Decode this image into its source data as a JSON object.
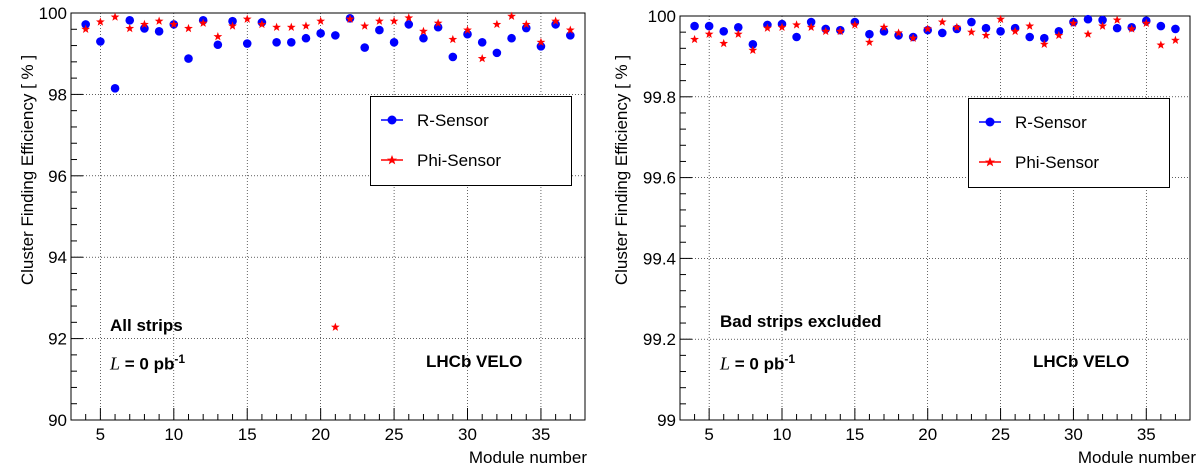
{
  "chart_data": [
    {
      "type": "scatter",
      "xlabel": "Module number",
      "ylabel": "Cluster Finding Efficiency  [ % ]",
      "xlim": [
        3,
        38
      ],
      "ylim": [
        90,
        100
      ],
      "xticks": [
        5,
        10,
        15,
        20,
        25,
        30,
        35
      ],
      "yticks": [
        90,
        92,
        94,
        96,
        98,
        100
      ],
      "grid": true,
      "legend_position": "upper-right",
      "annotations": [
        "All strips",
        "L = 0 pb-1",
        "LHCb VELO"
      ],
      "series": [
        {
          "name": "R-Sensor",
          "marker": "circle",
          "color": "#0000ff",
          "x": [
            4,
            5,
            6,
            7,
            8,
            9,
            10,
            11,
            12,
            13,
            14,
            15,
            16,
            17,
            18,
            19,
            20,
            21,
            22,
            23,
            24,
            25,
            26,
            27,
            28,
            29,
            30,
            31,
            32,
            33,
            34,
            35,
            36,
            37
          ],
          "y": [
            99.72,
            99.3,
            98.15,
            99.82,
            99.62,
            99.55,
            99.72,
            98.88,
            99.82,
            99.22,
            99.8,
            99.25,
            99.77,
            99.28,
            99.28,
            99.38,
            99.5,
            99.45,
            99.87,
            99.15,
            99.58,
            99.28,
            99.72,
            99.38,
            99.65,
            98.92,
            99.48,
            99.28,
            99.02,
            99.38,
            99.63,
            99.18,
            99.72,
            99.45
          ]
        },
        {
          "name": "Phi-Sensor",
          "marker": "star",
          "color": "#ff0000",
          "x": [
            4,
            5,
            6,
            7,
            8,
            9,
            10,
            11,
            12,
            13,
            14,
            15,
            16,
            17,
            18,
            19,
            20,
            21,
            22,
            23,
            24,
            25,
            26,
            27,
            28,
            29,
            30,
            31,
            32,
            33,
            34,
            35,
            36,
            37
          ],
          "y": [
            99.6,
            99.78,
            99.9,
            99.62,
            99.72,
            99.8,
            99.72,
            99.62,
            99.75,
            99.42,
            99.68,
            99.85,
            99.72,
            99.65,
            99.65,
            99.68,
            99.8,
            92.28,
            99.85,
            99.68,
            99.8,
            99.8,
            99.88,
            99.55,
            99.75,
            99.35,
            99.58,
            98.88,
            99.72,
            99.92,
            99.72,
            99.28,
            99.8,
            99.58
          ]
        }
      ]
    },
    {
      "type": "scatter",
      "xlabel": "Module number",
      "ylabel": "Cluster Finding Efficiency  [ % ]",
      "xlim": [
        3,
        38
      ],
      "ylim": [
        99,
        100
      ],
      "xticks": [
        5,
        10,
        15,
        20,
        25,
        30,
        35
      ],
      "yticks": [
        99,
        99.2,
        99.4,
        99.6,
        99.8,
        100
      ],
      "grid": true,
      "legend_position": "upper-right",
      "annotations": [
        "Bad strips excluded",
        "L = 0 pb-1",
        "LHCb VELO"
      ],
      "series": [
        {
          "name": "R-Sensor",
          "marker": "circle",
          "color": "#0000ff",
          "x": [
            4,
            5,
            6,
            7,
            8,
            9,
            10,
            11,
            12,
            13,
            14,
            15,
            16,
            17,
            18,
            19,
            20,
            21,
            22,
            23,
            24,
            25,
            26,
            27,
            28,
            29,
            30,
            31,
            32,
            33,
            34,
            35,
            36,
            37
          ],
          "y": [
            99.975,
            99.975,
            99.962,
            99.972,
            99.93,
            99.978,
            99.98,
            99.948,
            99.985,
            99.968,
            99.965,
            99.985,
            99.955,
            99.962,
            99.952,
            99.948,
            99.965,
            99.958,
            99.968,
            99.985,
            99.97,
            99.962,
            99.97,
            99.948,
            99.945,
            99.962,
            99.985,
            99.992,
            99.99,
            99.97,
            99.972,
            99.988,
            99.975,
            99.968
          ]
        },
        {
          "name": "Phi-Sensor",
          "marker": "star",
          "color": "#ff0000",
          "x": [
            4,
            5,
            6,
            7,
            8,
            9,
            10,
            11,
            12,
            13,
            14,
            15,
            16,
            17,
            18,
            19,
            20,
            21,
            22,
            23,
            24,
            25,
            26,
            27,
            28,
            29,
            30,
            31,
            32,
            33,
            34,
            35,
            36,
            37
          ],
          "y": [
            99.942,
            99.955,
            99.932,
            99.955,
            99.915,
            99.97,
            99.972,
            99.978,
            99.972,
            99.962,
            99.962,
            99.978,
            99.935,
            99.972,
            99.958,
            99.945,
            99.968,
            99.985,
            99.972,
            99.96,
            99.952,
            99.992,
            99.962,
            99.975,
            99.93,
            99.952,
            99.982,
            99.955,
            99.975,
            99.99,
            99.968,
            99.982,
            99.928,
            99.94
          ]
        }
      ]
    }
  ],
  "panels": [
    {
      "y_tick_labels": [
        "90",
        "92",
        "94",
        "96",
        "98",
        "100"
      ],
      "x_tick_labels": [
        "5",
        "10",
        "15",
        "20",
        "25",
        "30",
        "35"
      ],
      "xlabel": "Module number",
      "ylabel": "Cluster Finding Efficiency  [ % ]",
      "legend": [
        {
          "label": "R-Sensor",
          "marker": "circle",
          "color": "#0000ff"
        },
        {
          "label": "Phi-Sensor",
          "marker": "star",
          "color": "#ff0000"
        }
      ],
      "annotation_strips": "All strips",
      "annotation_lumi_symbol": "L",
      "annotation_lumi_value": "= 0 pb",
      "annotation_lumi_exp": "-1",
      "annotation_experiment": "LHCb VELO"
    },
    {
      "y_tick_labels": [
        "99",
        "99.2",
        "99.4",
        "99.6",
        "99.8",
        "100"
      ],
      "x_tick_labels": [
        "5",
        "10",
        "15",
        "20",
        "25",
        "30",
        "35"
      ],
      "xlabel": "Module number",
      "ylabel": "Cluster Finding Efficiency  [ % ]",
      "legend": [
        {
          "label": "R-Sensor",
          "marker": "circle",
          "color": "#0000ff"
        },
        {
          "label": "Phi-Sensor",
          "marker": "star",
          "color": "#ff0000"
        }
      ],
      "annotation_strips": "Bad strips excluded",
      "annotation_lumi_symbol": "L",
      "annotation_lumi_value": "= 0 pb",
      "annotation_lumi_exp": "-1",
      "annotation_experiment": "LHCb VELO"
    }
  ]
}
